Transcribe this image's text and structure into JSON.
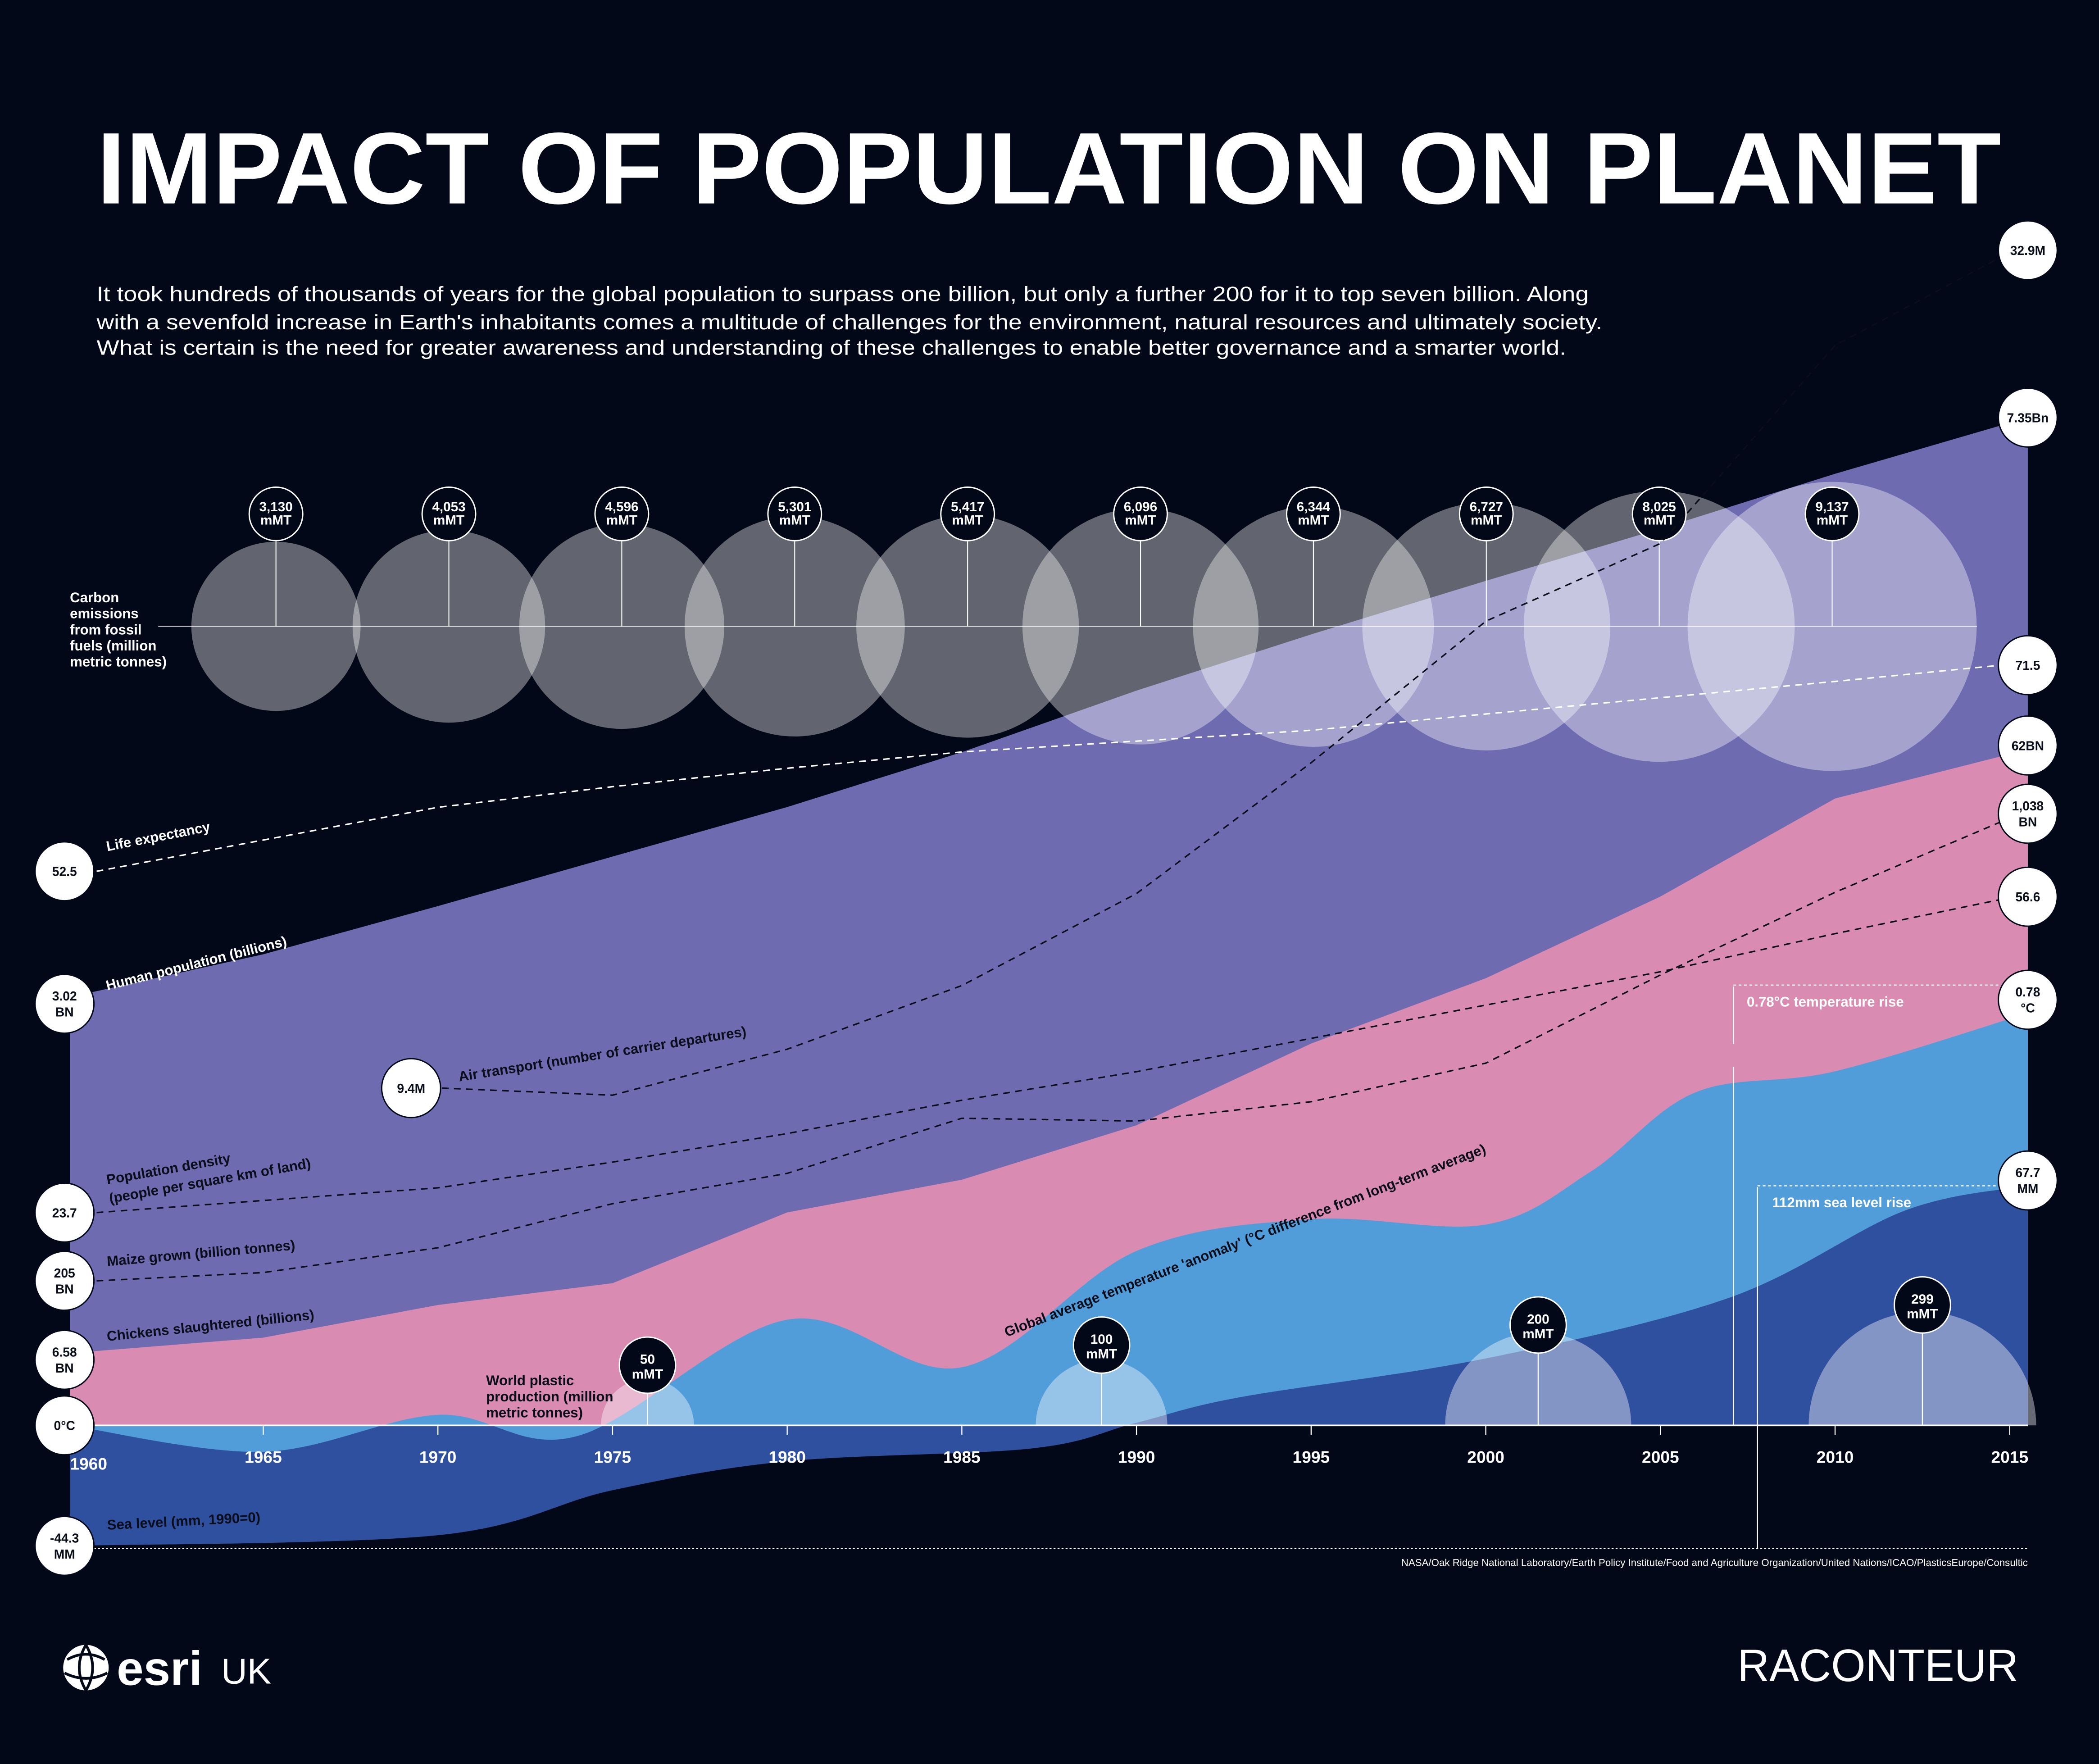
{
  "title": "IMPACT OF POPULATION ON PLANET",
  "intro": [
    "It took hundreds of thousands of years for the global population to surpass one billion, but only a further 200 for it to top seven billion. Along",
    "with a sevenfold increase in Earth's inhabitants comes a multitude of challenges for the environment, natural resources and ultimately society.",
    "What is certain is the need for greater awareness and understanding of these challenges to enable better governance and a smarter world."
  ],
  "colors": {
    "background": "#020818",
    "population": "#6e6bb0",
    "chickens": "#d98bb1",
    "temperature": "#519dd9",
    "sea_level": "#2f4f9f"
  },
  "chart_data": {
    "type": "area",
    "x_ticks": [
      "1960",
      "1965",
      "1970",
      "1975",
      "1980",
      "1985",
      "1990",
      "1995",
      "2000",
      "2005",
      "2010",
      "2015"
    ],
    "series": [
      {
        "id": "population",
        "name": "Human population (billions)",
        "kind": "area",
        "start_label": "3.02 BN",
        "end_label": "7.35Bn",
        "points": [
          [
            1960,
            3.02
          ],
          [
            1965,
            3.34
          ],
          [
            1970,
            3.7
          ],
          [
            1975,
            4.07
          ],
          [
            1980,
            4.44
          ],
          [
            1985,
            4.85
          ],
          [
            1990,
            5.31
          ],
          [
            1995,
            5.73
          ],
          [
            2000,
            6.13
          ],
          [
            2005,
            6.52
          ],
          [
            2010,
            6.93
          ],
          [
            2015,
            7.35
          ]
        ]
      },
      {
        "id": "chickens",
        "name": "Chickens slaughtered (billions)",
        "kind": "area",
        "start_label": "6.58 BN",
        "end_label": "62BN",
        "points": [
          [
            1960,
            6.58
          ],
          [
            1965,
            8
          ],
          [
            1970,
            11
          ],
          [
            1975,
            13
          ],
          [
            1980,
            19.5
          ],
          [
            1985,
            22.5
          ],
          [
            1990,
            27.5
          ],
          [
            1995,
            35
          ],
          [
            2000,
            41
          ],
          [
            2005,
            48.5
          ],
          [
            2010,
            57.5
          ],
          [
            2015,
            62
          ]
        ]
      },
      {
        "id": "temperature",
        "name": "Global average temperature 'anomaly' (°C difference from long-term average)",
        "kind": "area",
        "start_label": "0°C",
        "end_label": "0.78 °C",
        "points": [
          [
            1960,
            0
          ],
          [
            1965,
            -0.05
          ],
          [
            1970,
            0.02
          ],
          [
            1974,
            -0.02
          ],
          [
            1980,
            0.2
          ],
          [
            1985,
            0.11
          ],
          [
            1990,
            0.33
          ],
          [
            1995,
            0.39
          ],
          [
            2000,
            0.38
          ],
          [
            2003,
            0.48
          ],
          [
            2006,
            0.63
          ],
          [
            2010,
            0.67
          ],
          [
            2015,
            0.78
          ]
        ]
      },
      {
        "id": "sea_level",
        "name": "Sea level (mm, 1990=0)",
        "kind": "area",
        "start_label": "-44.3 MM",
        "end_label": "67.7 MM",
        "points": [
          [
            1960,
            -44.3
          ],
          [
            1970,
            -41
          ],
          [
            1975,
            -27
          ],
          [
            1980,
            -18
          ],
          [
            1987,
            -14
          ],
          [
            1990,
            -6
          ],
          [
            1993,
            2
          ],
          [
            2000,
            14
          ],
          [
            2007,
            33
          ],
          [
            2012,
            60
          ],
          [
            2015,
            67.7
          ]
        ]
      },
      {
        "id": "life",
        "name": "Life expectancy",
        "kind": "line",
        "start_label": "52.5",
        "end_label": "71.5",
        "points": [
          [
            1960,
            52.5
          ],
          [
            1970,
            58.4
          ],
          [
            1975,
            60.3
          ],
          [
            1980,
            62
          ],
          [
            1985,
            63.5
          ],
          [
            1990,
            64.5
          ],
          [
            1995,
            65.5
          ],
          [
            2000,
            67
          ],
          [
            2005,
            68.5
          ],
          [
            2010,
            70
          ],
          [
            2015,
            71.5
          ]
        ]
      },
      {
        "id": "air",
        "name": "Air transport (number of carrier departures)",
        "kind": "line",
        "start_label": "9.4M",
        "end_label": "32.9M",
        "points": [
          [
            1970,
            9.4
          ],
          [
            1975,
            9.2
          ],
          [
            1980,
            10.5
          ],
          [
            1985,
            12.3
          ],
          [
            1990,
            14.9
          ],
          [
            1995,
            18.6
          ],
          [
            2000,
            22.6
          ],
          [
            2005,
            24.8
          ],
          [
            2010,
            30.4
          ],
          [
            2015,
            32.9
          ]
        ]
      },
      {
        "id": "density",
        "name": "Population density (people per square km of land)",
        "kind": "line",
        "start_label": "23.7",
        "end_label": "56.6",
        "points": [
          [
            1960,
            23.7
          ],
          [
            1970,
            26.3
          ],
          [
            1975,
            29
          ],
          [
            1980,
            32
          ],
          [
            1985,
            35.5
          ],
          [
            1990,
            38.5
          ],
          [
            1995,
            42
          ],
          [
            2000,
            45.5
          ],
          [
            2005,
            49
          ],
          [
            2010,
            53
          ],
          [
            2015,
            56.6
          ]
        ]
      },
      {
        "id": "maize",
        "name": "Maize grown (billion tonnes)",
        "kind": "line",
        "start_label": "205 BN",
        "end_label": "1,038 BN",
        "points": [
          [
            1960,
            205
          ],
          [
            1965,
            220
          ],
          [
            1970,
            265
          ],
          [
            1975,
            345
          ],
          [
            1980,
            400
          ],
          [
            1985,
            500
          ],
          [
            1990,
            495
          ],
          [
            1995,
            530
          ],
          [
            2000,
            600
          ],
          [
            2005,
            760
          ],
          [
            2010,
            910
          ],
          [
            2015,
            1038
          ]
        ]
      }
    ],
    "carbon": {
      "name": "Carbon emissions from fossil fuels (million metric tonnes)",
      "values": [
        3130,
        4053,
        4596,
        5301,
        5417,
        6096,
        6344,
        6727,
        8025,
        9137
      ],
      "labels": [
        "3,130",
        "4,053",
        "4,596",
        "5,301",
        "5,417",
        "6,096",
        "6,344",
        "6,727",
        "8,025",
        "9,137"
      ],
      "unit": "mMT"
    },
    "plastic": {
      "name": "World plastic production (million metric tonnes)",
      "points": [
        [
          1976,
          50
        ],
        [
          1989,
          100
        ],
        [
          2001.5,
          200
        ],
        [
          2012.5,
          299
        ]
      ],
      "labels": [
        "50",
        "100",
        "200",
        "299"
      ],
      "unit": "mMT"
    },
    "annotations": {
      "temperature_rise": "0.78°C temperature rise",
      "sea_rise": "112mm sea level rise"
    }
  },
  "labels": {
    "carbon": [
      "Carbon",
      "emissions",
      "from fossil",
      "fuels (million",
      "metric tonnes)"
    ],
    "plastic": [
      "World plastic",
      "production (million",
      "metric tonnes)"
    ],
    "density": [
      "Population density",
      "(people per square km of land)"
    ]
  },
  "source": "NASA/Oak Ridge National Laboratory/Earth Policy Institute/Food and Agriculture Organization/United Nations/ICAO/PlasticsEurope/Consultic",
  "logos": {
    "esri": "esri",
    "esri_uk": "UK",
    "raconteur": "RACONTEUR"
  }
}
